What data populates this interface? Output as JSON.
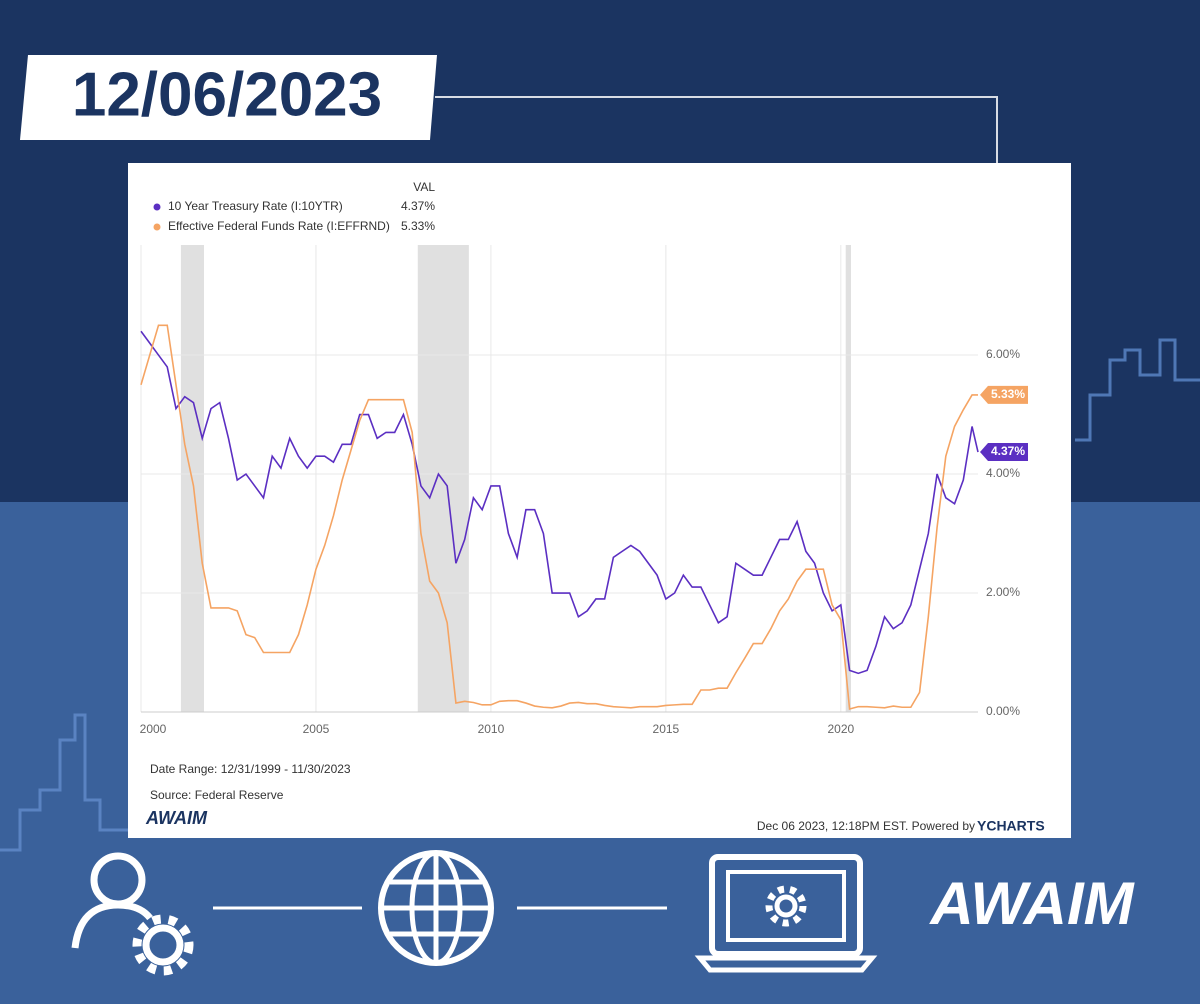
{
  "header_date": "12/06/2023",
  "chart_data": {
    "type": "line",
    "legend_header": "VAL",
    "x": [
      2000,
      2000.25,
      2000.5,
      2000.75,
      2001,
      2001.25,
      2001.5,
      2001.75,
      2002,
      2002.25,
      2002.5,
      2002.75,
      2003,
      2003.25,
      2003.5,
      2003.75,
      2004,
      2004.25,
      2004.5,
      2004.75,
      2005,
      2005.25,
      2005.5,
      2005.75,
      2006,
      2006.25,
      2006.5,
      2006.75,
      2007,
      2007.25,
      2007.5,
      2007.75,
      2008,
      2008.25,
      2008.5,
      2008.75,
      2009,
      2009.25,
      2009.5,
      2009.75,
      2010,
      2010.25,
      2010.5,
      2010.75,
      2011,
      2011.25,
      2011.5,
      2011.75,
      2012,
      2012.25,
      2012.5,
      2012.75,
      2013,
      2013.25,
      2013.5,
      2013.75,
      2014,
      2014.25,
      2014.5,
      2014.75,
      2015,
      2015.25,
      2015.5,
      2015.75,
      2016,
      2016.25,
      2016.5,
      2016.75,
      2017,
      2017.25,
      2017.5,
      2017.75,
      2018,
      2018.25,
      2018.5,
      2018.75,
      2019,
      2019.25,
      2019.5,
      2019.75,
      2020,
      2020.25,
      2020.5,
      2020.75,
      2021,
      2021.25,
      2021.5,
      2021.75,
      2022,
      2022.25,
      2022.5,
      2022.75,
      2023,
      2023.25,
      2023.5,
      2023.75,
      2023.92
    ],
    "series": [
      {
        "name": "10 Year Treasury Rate (I:10YTR)",
        "color": "#5b2fc2",
        "current": 4.37,
        "current_label": "4.37%",
        "values": [
          6.4,
          6.2,
          6.0,
          5.8,
          5.1,
          5.3,
          5.2,
          4.6,
          5.1,
          5.2,
          4.6,
          3.9,
          4.0,
          3.8,
          3.6,
          4.3,
          4.1,
          4.6,
          4.3,
          4.1,
          4.3,
          4.3,
          4.2,
          4.5,
          4.5,
          5.0,
          5.0,
          4.6,
          4.7,
          4.7,
          5.0,
          4.5,
          3.8,
          3.6,
          4.0,
          3.8,
          2.5,
          2.9,
          3.6,
          3.4,
          3.8,
          3.8,
          3.0,
          2.6,
          3.4,
          3.4,
          3.0,
          2.0,
          2.0,
          2.0,
          1.6,
          1.7,
          1.9,
          1.9,
          2.6,
          2.7,
          2.8,
          2.7,
          2.5,
          2.3,
          1.9,
          2.0,
          2.3,
          2.1,
          2.1,
          1.8,
          1.5,
          1.6,
          2.5,
          2.4,
          2.3,
          2.3,
          2.6,
          2.9,
          2.9,
          3.2,
          2.7,
          2.5,
          2.0,
          1.7,
          1.8,
          0.7,
          0.65,
          0.7,
          1.1,
          1.6,
          1.4,
          1.5,
          1.8,
          2.4,
          3.0,
          4.0,
          3.6,
          3.5,
          3.9,
          4.8,
          4.37
        ]
      },
      {
        "name": "Effective Federal Funds Rate (I:EFFRND)",
        "color": "#f5a463",
        "current": 5.33,
        "current_label": "5.33%",
        "values": [
          5.5,
          6.0,
          6.5,
          6.5,
          5.5,
          4.5,
          3.8,
          2.5,
          1.75,
          1.75,
          1.75,
          1.7,
          1.3,
          1.25,
          1.0,
          1.0,
          1.0,
          1.0,
          1.3,
          1.8,
          2.4,
          2.8,
          3.3,
          3.9,
          4.4,
          4.9,
          5.25,
          5.25,
          5.25,
          5.25,
          5.25,
          4.7,
          3.0,
          2.2,
          2.0,
          1.5,
          0.15,
          0.18,
          0.16,
          0.12,
          0.12,
          0.18,
          0.19,
          0.19,
          0.15,
          0.1,
          0.08,
          0.07,
          0.1,
          0.15,
          0.16,
          0.14,
          0.14,
          0.11,
          0.09,
          0.08,
          0.07,
          0.09,
          0.09,
          0.09,
          0.11,
          0.12,
          0.13,
          0.13,
          0.37,
          0.37,
          0.4,
          0.4,
          0.66,
          0.9,
          1.15,
          1.15,
          1.4,
          1.7,
          1.9,
          2.2,
          2.4,
          2.4,
          2.4,
          1.8,
          1.55,
          0.05,
          0.09,
          0.09,
          0.08,
          0.07,
          0.1,
          0.08,
          0.08,
          0.33,
          1.6,
          3.1,
          4.3,
          4.8,
          5.08,
          5.33,
          5.33
        ]
      }
    ],
    "shaded_ranges": [
      [
        2001.14,
        2001.8
      ],
      [
        2007.91,
        2009.37
      ],
      [
        2020.14,
        2020.29
      ]
    ],
    "xlim": [
      2000,
      2023.92
    ],
    "xticks": [
      2000,
      2005,
      2010,
      2015,
      2020
    ],
    "ylim": [
      0,
      7.85
    ],
    "yticks": [
      {
        "value": 0,
        "label": "0.00%"
      },
      {
        "value": 2,
        "label": "2.00%"
      },
      {
        "value": 4,
        "label": "4.00%"
      },
      {
        "value": 6,
        "label": "6.00%"
      }
    ],
    "grid": true,
    "date_range": "Date Range: 12/31/1999 - 11/30/2023",
    "source": "Source: Federal Reserve",
    "timestamp": "Dec 06 2023, 12:18PM EST. Powered by",
    "brand": "YCHARTS",
    "logo": "AWAIM"
  },
  "footer_logo": "AWAIM"
}
